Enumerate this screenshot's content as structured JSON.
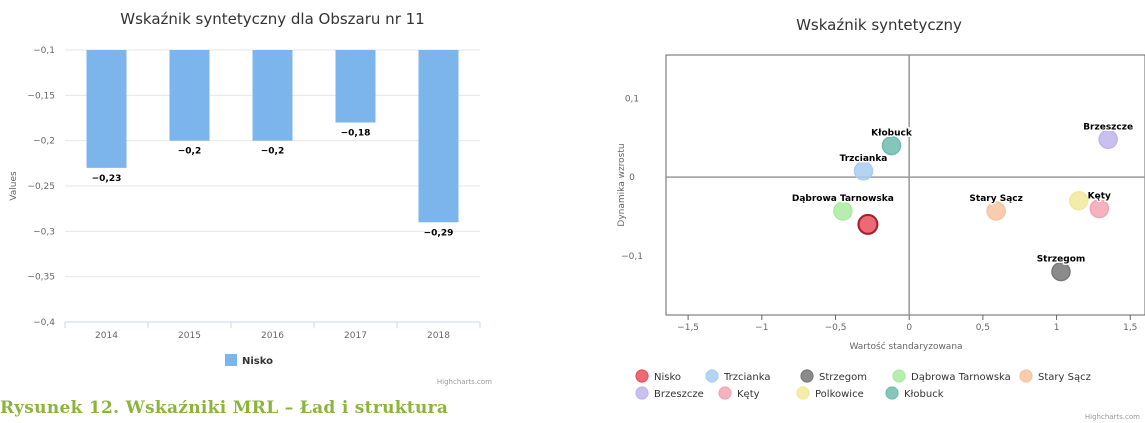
{
  "caption": "Rysunek 12. Wskaźniki MRL – Ład i struktura",
  "credits": "Highcharts.com",
  "colors": {
    "bar": "#7cb5ec",
    "grid": "#e6e6e6",
    "axis": "#999999",
    "quadrant_line": "#999999",
    "text": "#333333",
    "caption": "#8cb43c"
  },
  "chart_data": [
    {
      "type": "bar",
      "title": "Wskaźnik syntetyczny dla Obszaru nr 11",
      "ylabel": "Values",
      "xlabel": "",
      "categories": [
        "2014",
        "2015",
        "2016",
        "2017",
        "2018"
      ],
      "series": [
        {
          "name": "Nisko",
          "values": [
            -0.23,
            -0.2,
            -0.2,
            -0.18,
            -0.29
          ],
          "color": "#7cb5ec"
        }
      ],
      "data_labels": [
        "−0,23",
        "−0,2",
        "−0,2",
        "−0,18",
        "−0,29"
      ],
      "ylim": [
        -0.4,
        -0.1
      ],
      "yticks": [
        -0.1,
        -0.15,
        -0.2,
        -0.25,
        -0.3,
        -0.35,
        -0.4
      ],
      "ytick_labels": [
        "−0,1",
        "−0,15",
        "−0,2",
        "−0,25",
        "−0,3",
        "−0,35",
        "−0,4"
      ],
      "bar_baseline": -0.1,
      "grid": true,
      "legend": "bottom-center"
    },
    {
      "type": "scatter",
      "title": "Wskaźnik syntetyczny",
      "xlabel": "Wartość standaryzowana",
      "ylabel": "Dynamika wzrostu",
      "xlim": [
        -1.65,
        1.6
      ],
      "ylim": [
        -0.175,
        0.155
      ],
      "xticks": [
        -1.5,
        -1,
        -0.5,
        0,
        0.5,
        1,
        1.5
      ],
      "xtick_labels": [
        "−1,5",
        "−1",
        "−0,5",
        "0",
        "0,5",
        "1",
        "1,5"
      ],
      "yticks": [
        0.1,
        0,
        -0.1
      ],
      "ytick_labels": [
        "0,1",
        "0",
        "−0,1"
      ],
      "grid": false,
      "legend": "bottom",
      "series": [
        {
          "name": "Nisko",
          "x": -0.28,
          "y": -0.06,
          "color": "#e8505b",
          "label": ""
        },
        {
          "name": "Trzcianka",
          "x": -0.31,
          "y": 0.008,
          "color": "#a8cdf0",
          "label": "Trzcianka"
        },
        {
          "name": "Strzegom",
          "x": 1.03,
          "y": -0.12,
          "color": "#777777",
          "label": "Strzegom"
        },
        {
          "name": "Dąbrowa Tarnowska",
          "x": -0.45,
          "y": -0.043,
          "color": "#a9eba0",
          "label": "Dąbrowa Tarnowska"
        },
        {
          "name": "Stary Sącz",
          "x": 0.59,
          "y": -0.043,
          "color": "#f7c49f",
          "label": "Stary Sącz"
        },
        {
          "name": "Brzeszcze",
          "x": 1.35,
          "y": 0.048,
          "color": "#bfb5ec",
          "label": "Brzeszcze"
        },
        {
          "name": "Kęty",
          "x": 1.29,
          "y": -0.04,
          "color": "#f4a4b4",
          "label": "Kęty"
        },
        {
          "name": "Polkowice",
          "x": 1.15,
          "y": -0.03,
          "color": "#f2e99a",
          "label": ""
        },
        {
          "name": "Kłobuck",
          "x": -0.12,
          "y": 0.04,
          "color": "#6fbcae",
          "label": "Kłobuck"
        }
      ]
    }
  ]
}
